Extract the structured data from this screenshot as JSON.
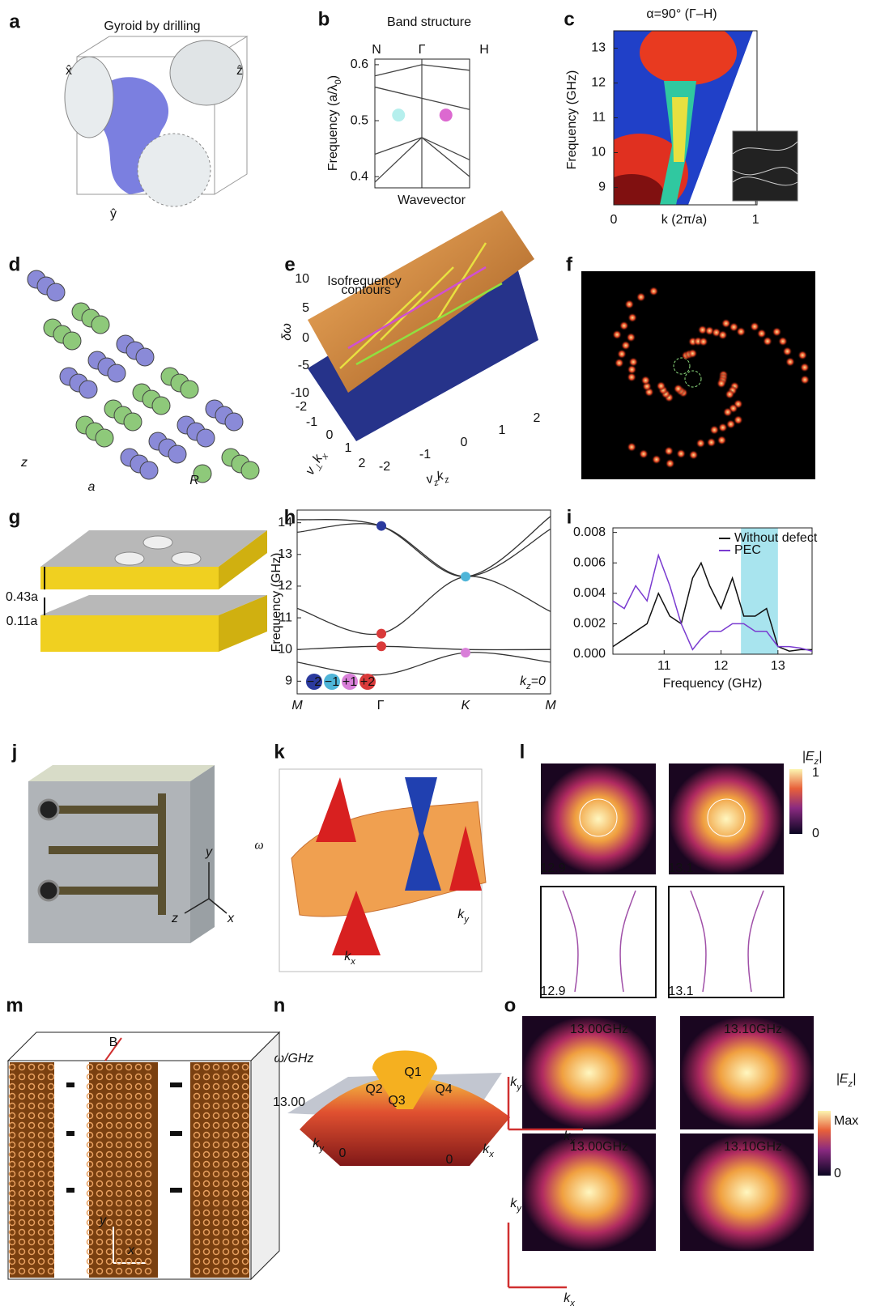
{
  "panels": {
    "a": {
      "label": "a",
      "title": "Gyroid by drilling",
      "axes": [
        "x̂",
        "ŷ",
        "ẑ"
      ]
    },
    "b": {
      "label": "b",
      "chart_data": {
        "type": "line",
        "title": "Band structure",
        "categories": [
          "N",
          "Γ",
          "H"
        ],
        "y_label": {
          "text": "Frequency (a/λ",
          "sub": "0",
          "end": ")"
        },
        "x_label": "Wavevector",
        "ylim": [
          0.38,
          0.61
        ],
        "yticks": [
          0.4,
          0.5,
          0.6
        ],
        "series": [
          {
            "color": "#444444",
            "values": [
              0.39,
              0.47,
              0.4
            ]
          },
          {
            "color": "#444444",
            "values": [
              0.44,
              0.47,
              0.43
            ]
          },
          {
            "color": "#444444",
            "values": [
              0.56,
              0.54,
              0.52
            ]
          },
          {
            "color": "#444444",
            "values": [
              0.58,
              0.6,
              0.59
            ]
          }
        ],
        "points": [
          {
            "x": 0.5,
            "y": 0.51,
            "color": "#a8ecea"
          },
          {
            "x": 1.5,
            "y": 0.51,
            "color": "#d64fc8"
          }
        ]
      }
    },
    "c": {
      "label": "c",
      "chart_data": {
        "type": "heatmap",
        "title": "α=90° (Γ–H)",
        "y_label": "Frequency (GHz)",
        "x_label": {
          "text": "k",
          "rest": " (2π/a)"
        },
        "xlim": [
          0,
          1.01
        ],
        "xticks": [
          0,
          1
        ],
        "ylim": [
          8.5,
          13.5
        ],
        "yticks": [
          9,
          10,
          11,
          12,
          13
        ]
      }
    },
    "d": {
      "label": "d",
      "texts": [
        "z",
        "a",
        "R"
      ]
    },
    "e": {
      "label": "e",
      "annotation": [
        "Isofrequency",
        "contours"
      ],
      "z_label": "δω",
      "z_ticks": [
        10,
        5,
        0,
        -5,
        -10
      ],
      "x_ticks": [
        -2,
        -1,
        0,
        1,
        2
      ],
      "y_ticks": [
        -2,
        -1,
        0,
        1,
        2
      ],
      "x_label": [
        [
          "v",
          "⊥"
        ],
        [
          "k",
          "x"
        ]
      ],
      "y_label": [
        [
          "v",
          "z"
        ],
        [
          "k",
          "z"
        ]
      ]
    },
    "f": {
      "label": "f"
    },
    "g": {
      "label": "g",
      "texts": [
        "0.43a",
        "0.11a"
      ]
    },
    "h": {
      "label": "h",
      "chart_data": {
        "type": "line",
        "categories": [
          "M",
          "Γ",
          "K",
          "M"
        ],
        "y_label": "Frequency (GHz)",
        "ylim": [
          8.6,
          14.4
        ],
        "yticks": [
          9,
          10,
          11,
          12,
          13,
          14
        ],
        "series": [
          {
            "color": "#333333",
            "values": [
              14.1,
              13.9,
              12.3,
              14.2
            ]
          },
          {
            "color": "#333333",
            "values": [
              13.7,
              13.9,
              12.3,
              13.8
            ]
          },
          {
            "color": "#333333",
            "values": [
              11.3,
              10.5,
              12.3,
              11.2
            ]
          },
          {
            "color": "#333333",
            "values": [
              10.0,
              10.1,
              10.0,
              10.0
            ]
          },
          {
            "color": "#333333",
            "values": [
              9.6,
              9.2,
              9.9,
              9.6
            ]
          }
        ],
        "points": [
          {
            "x": 1,
            "y": 13.9,
            "color": "#2b3a9e"
          },
          {
            "x": 2,
            "y": 12.3,
            "color": "#4fb5d8"
          },
          {
            "x": 1,
            "y": 10.5,
            "color": "#d93a3a"
          },
          {
            "x": 1,
            "y": 10.1,
            "color": "#d93a3a"
          },
          {
            "x": 2,
            "y": 9.9,
            "color": "#d97fd9"
          }
        ],
        "charges": [
          {
            "text": "−2",
            "color": "#2b3a9e"
          },
          {
            "text": "−1",
            "color": "#4fb5d8"
          },
          {
            "text": "+1",
            "color": "#d97fd9"
          },
          {
            "text": "+2",
            "color": "#d93a3a"
          }
        ],
        "note": {
          "text": "k",
          "sub": "z",
          "rest": "=0"
        }
      }
    },
    "i": {
      "label": "i",
      "chart_data": {
        "type": "line",
        "x_label": "Frequency (GHz)",
        "xlim": [
          10.1,
          13.6
        ],
        "xticks": [
          11,
          12,
          13
        ],
        "ylim": [
          0,
          0.0083
        ],
        "yticks": [
          {
            "value": 0,
            "label": "0.000"
          },
          {
            "value": 0.002,
            "label": "0.002"
          },
          {
            "value": 0.004,
            "label": "0.004"
          },
          {
            "value": 0.006,
            "label": "0.006"
          },
          {
            "value": 0.008,
            "label": "0.008"
          }
        ],
        "highlight": [
          12.35,
          13.0
        ],
        "highlight_color": "#a8e4ee",
        "legend": "upper right",
        "x": [
          10.1,
          10.3,
          10.5,
          10.7,
          10.9,
          11.1,
          11.3,
          11.5,
          11.65,
          11.8,
          12.0,
          12.2,
          12.4,
          12.6,
          12.8,
          13.0,
          13.2,
          13.4,
          13.6
        ],
        "series": [
          {
            "name": "Without defect",
            "color": "#111111",
            "values": [
              0.0005,
              0.001,
              0.0015,
              0.002,
              0.004,
              0.0025,
              0.002,
              0.005,
              0.006,
              0.0045,
              0.003,
              0.005,
              0.0025,
              0.0025,
              0.003,
              0.0005,
              0.0002,
              0.0003,
              0.0003
            ]
          },
          {
            "name": "PEC",
            "color": "#7a3bd0",
            "values": [
              0.0035,
              0.003,
              0.0045,
              0.0035,
              0.0065,
              0.0045,
              0.002,
              0.0003,
              0.001,
              0.0015,
              0.0015,
              0.002,
              0.002,
              0.0015,
              0.0015,
              0.0005,
              0.0005,
              0.0004,
              0.0002
            ]
          }
        ]
      }
    },
    "j": {
      "label": "j",
      "axes": [
        "y",
        "z",
        "x"
      ]
    },
    "k": {
      "label": "k",
      "omega": "ω",
      "kx": {
        "text": "k",
        "sub": "x"
      },
      "ky": {
        "text": "k",
        "sub": "y"
      }
    },
    "l": {
      "label": "l",
      "maps": [
        "12.9",
        "13.1"
      ],
      "contours": [
        "12.9",
        "13.1"
      ],
      "colorbar": {
        "text": "|E",
        "sub": "z",
        "end": "|",
        "ticks": [
          1,
          0
        ]
      }
    },
    "m": {
      "label": "m",
      "texts": [
        "B",
        "y",
        "x"
      ]
    },
    "n": {
      "label": "n",
      "omega": "ω/GHz",
      "level": "13.00",
      "points": [
        "Q1",
        "Q2",
        "Q3",
        "Q4"
      ],
      "ky": {
        "text": "k",
        "sub": "y"
      },
      "kx": {
        "text": "k",
        "sub": "x"
      },
      "origin": [
        "0",
        "0"
      ]
    },
    "o": {
      "label": "o",
      "maps": [
        "13.00GHz",
        "13.10GHz",
        "13.00GHz",
        "13.10GHz"
      ],
      "ky": {
        "text": "k",
        "sub": "y"
      },
      "kx": {
        "text": "k",
        "sub": "x"
      },
      "colorbar": {
        "text": "|E",
        "sub": "z",
        "end": "|",
        "max": "Max",
        "min": "0"
      }
    }
  }
}
